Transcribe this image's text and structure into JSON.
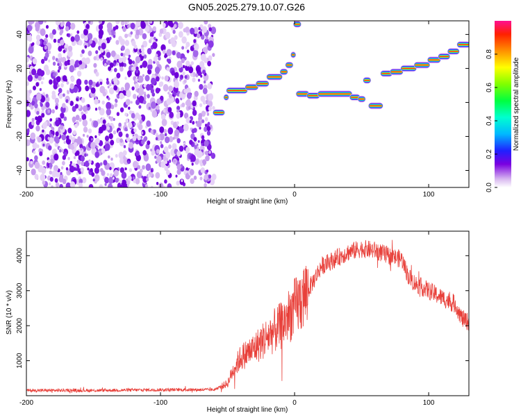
{
  "title": "GN05.2025.279.10.07.G26",
  "chart_data": [
    {
      "type": "heatmap",
      "xlabel": "Height of straight line (km)",
      "ylabel": "Frequency (Hz)",
      "xlim": [
        -200,
        130
      ],
      "ylim": [
        -50,
        48
      ],
      "xticks": [
        "-200",
        "-100",
        "0",
        "100"
      ],
      "yticks": [
        "-40",
        "-20",
        "0",
        "20",
        "40"
      ],
      "noise_region": {
        "x": [
          -200,
          -60
        ],
        "y": [
          -50,
          48
        ]
      },
      "ridge": [
        {
          "x0": -60,
          "x1": -53,
          "y": -6
        },
        {
          "x0": -52,
          "x1": -50,
          "y": 3
        },
        {
          "x0": -50,
          "x1": -36,
          "y": 7
        },
        {
          "x0": -36,
          "x1": -28,
          "y": 9
        },
        {
          "x0": -28,
          "x1": -20,
          "y": 11
        },
        {
          "x0": -20,
          "x1": -10,
          "y": 15
        },
        {
          "x0": -10,
          "x1": -6,
          "y": 18
        },
        {
          "x0": -6,
          "x1": -2,
          "y": 22
        },
        {
          "x0": -2,
          "x1": 0,
          "y": 28
        },
        {
          "x0": 0,
          "x1": 4,
          "y": 46
        },
        {
          "x0": 2,
          "x1": 10,
          "y": 5
        },
        {
          "x0": 10,
          "x1": 18,
          "y": 4
        },
        {
          "x0": 18,
          "x1": 42,
          "y": 5
        },
        {
          "x0": 42,
          "x1": 48,
          "y": 3
        },
        {
          "x0": 48,
          "x1": 52,
          "y": 2
        },
        {
          "x0": 52,
          "x1": 56,
          "y": 13
        },
        {
          "x0": 56,
          "x1": 65,
          "y": -2
        },
        {
          "x0": 65,
          "x1": 72,
          "y": 17
        },
        {
          "x0": 72,
          "x1": 80,
          "y": 18
        },
        {
          "x0": 80,
          "x1": 90,
          "y": 20
        },
        {
          "x0": 90,
          "x1": 100,
          "y": 22
        },
        {
          "x0": 100,
          "x1": 108,
          "y": 25
        },
        {
          "x0": 108,
          "x1": 115,
          "y": 27
        },
        {
          "x0": 115,
          "x1": 122,
          "y": 30
        },
        {
          "x0": 122,
          "x1": 130,
          "y": 34
        }
      ]
    },
    {
      "type": "line",
      "xlabel": "Height of straight line (km)",
      "ylabel": "SNR (10 * v/v)",
      "xlim": [
        -200,
        130
      ],
      "ylim": [
        0,
        4700
      ],
      "xticks": [
        "-200",
        "-100",
        "0",
        "100"
      ],
      "yticks": [
        "1000",
        "2000",
        "3000",
        "4000"
      ],
      "color": "#e8403a",
      "envelope": {
        "x": [
          -200,
          -150,
          -100,
          -60,
          -50,
          -45,
          -40,
          -30,
          -20,
          -10,
          0,
          10,
          20,
          30,
          40,
          50,
          60,
          70,
          80,
          85,
          90,
          100,
          110,
          120,
          125,
          130
        ],
        "y": [
          150,
          150,
          170,
          170,
          350,
          800,
          1100,
          1350,
          1700,
          2000,
          2500,
          3000,
          3700,
          3900,
          4100,
          4200,
          4150,
          4000,
          3900,
          3400,
          3200,
          3000,
          2800,
          2600,
          2200,
          2100
        ]
      }
    }
  ],
  "colorbar": {
    "label": "Normalized spectral amplitude",
    "ticks": [
      "0.0",
      "0.2",
      "0.4",
      "0.6",
      "0.8"
    ]
  }
}
